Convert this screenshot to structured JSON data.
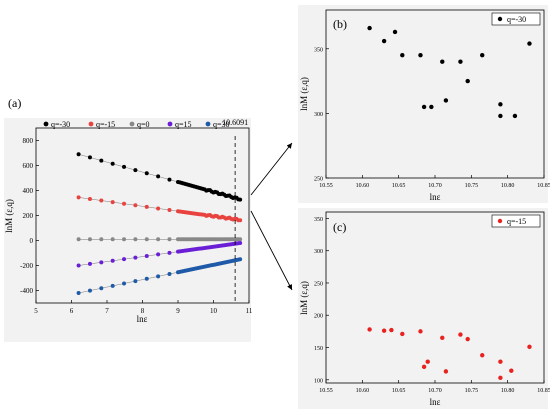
{
  "chart_data": [
    {
      "type": "scatter",
      "panel_label": "(a)",
      "xlabel": "lnε",
      "ylabel": "lnM (ε,q)",
      "xlim": [
        5,
        11
      ],
      "ylim": [
        -500,
        900
      ],
      "xticks": [
        5,
        6,
        7,
        8,
        9,
        10,
        11
      ],
      "yticks": [
        -400,
        -200,
        0,
        200,
        400,
        600,
        800
      ],
      "annotation": {
        "text": "10.6091",
        "x": 10.6091
      },
      "legend_position": "top",
      "series": [
        {
          "name": "q=-30",
          "color": "#000000",
          "start": [
            6.2,
            690
          ],
          "end": [
            10.75,
            330
          ]
        },
        {
          "name": "q=-15",
          "color": "#e8433f",
          "start": [
            6.2,
            345
          ],
          "end": [
            10.75,
            165
          ]
        },
        {
          "name": "q=0",
          "color": "#888888",
          "start": [
            6.2,
            10
          ],
          "end": [
            10.75,
            10
          ]
        },
        {
          "name": "q=15",
          "color": "#6a1fd6",
          "start": [
            6.2,
            -200
          ],
          "end": [
            10.75,
            -20
          ]
        },
        {
          "name": "q=30",
          "color": "#1f5aa8",
          "start": [
            6.2,
            -420
          ],
          "end": [
            10.75,
            -150
          ]
        }
      ]
    },
    {
      "type": "scatter",
      "panel_label": "(b)",
      "xlabel": "lnε",
      "ylabel": "lnM (ε,q)",
      "xlim": [
        10.55,
        10.85
      ],
      "ylim": [
        250,
        380
      ],
      "xticks": [
        "10.55",
        "10.60",
        "10.65",
        "10.70",
        "10.75",
        "10.80",
        "10.85"
      ],
      "yticks": [
        250,
        300,
        350
      ],
      "legend_position": "top-right",
      "series": [
        {
          "name": "q=-30",
          "color": "#000000",
          "x": [
            10.61,
            10.63,
            10.645,
            10.655,
            10.68,
            10.685,
            10.695,
            10.71,
            10.715,
            10.735,
            10.745,
            10.765,
            10.79,
            10.79,
            10.81,
            10.83
          ],
          "y": [
            366,
            356,
            363,
            345,
            345,
            305,
            305,
            340,
            310,
            340,
            325,
            345,
            307,
            298,
            298,
            354
          ]
        }
      ]
    },
    {
      "type": "scatter",
      "panel_label": "(c)",
      "xlabel": "lnε",
      "ylabel": "lnM (ε,q)",
      "xlim": [
        10.55,
        10.85
      ],
      "ylim": [
        95,
        360
      ],
      "xticks": [
        "10.55",
        "10.60",
        "10.65",
        "10.70",
        "10.75",
        "10.80",
        "10.85"
      ],
      "yticks": [
        100,
        150,
        200,
        250,
        300,
        350
      ],
      "legend_position": "top-right",
      "series": [
        {
          "name": "q=-15",
          "color": "#e8231f",
          "x": [
            10.61,
            10.63,
            10.64,
            10.655,
            10.68,
            10.685,
            10.69,
            10.71,
            10.715,
            10.735,
            10.745,
            10.765,
            10.79,
            10.79,
            10.805,
            10.83
          ],
          "y": [
            178,
            176,
            177,
            171,
            175,
            120,
            128,
            165,
            113,
            170,
            163,
            138,
            128,
            103,
            114,
            151
          ]
        }
      ]
    }
  ]
}
